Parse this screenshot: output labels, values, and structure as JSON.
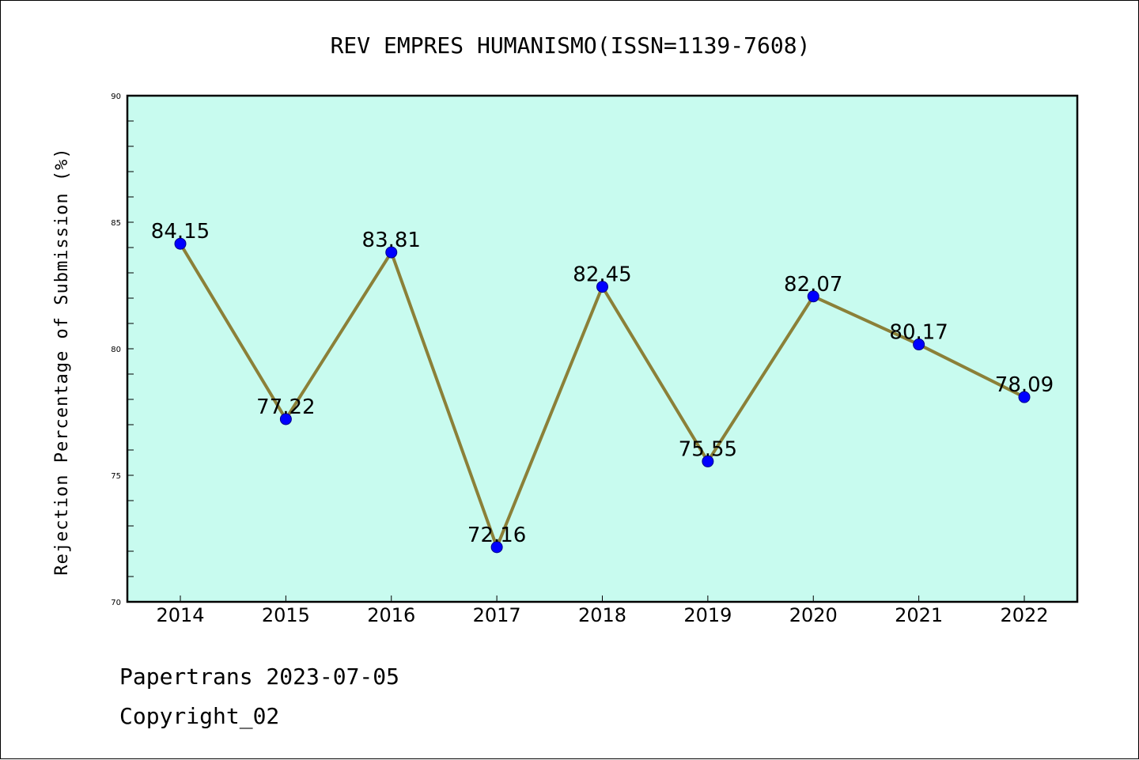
{
  "chart_data": {
    "type": "line",
    "title": "REV EMPRES HUMANISMO(ISSN=1139-7608)",
    "xlabel": "",
    "ylabel": "Rejection Percentage of Submission (%)",
    "categories": [
      "2014",
      "2015",
      "2016",
      "2017",
      "2018",
      "2019",
      "2020",
      "2021",
      "2022"
    ],
    "values": [
      84.15,
      77.22,
      83.81,
      72.16,
      82.45,
      75.55,
      82.07,
      80.17,
      78.09
    ],
    "data_labels": [
      "84.15",
      "77.22",
      "83.81",
      "72.16",
      "82.45",
      "75.55",
      "82.07",
      "80.17",
      "78.09"
    ],
    "ylim": [
      70,
      90
    ],
    "yticks": [
      70,
      75,
      80,
      85,
      90
    ],
    "grid": false,
    "colors": {
      "plot_background": "#c8fbef",
      "line": "#8b8038",
      "marker": "#0000ff",
      "marker_edge": "#00008b"
    }
  },
  "footer": {
    "line1": "Papertrans 2023-07-05",
    "line2": "Copyright_02"
  }
}
